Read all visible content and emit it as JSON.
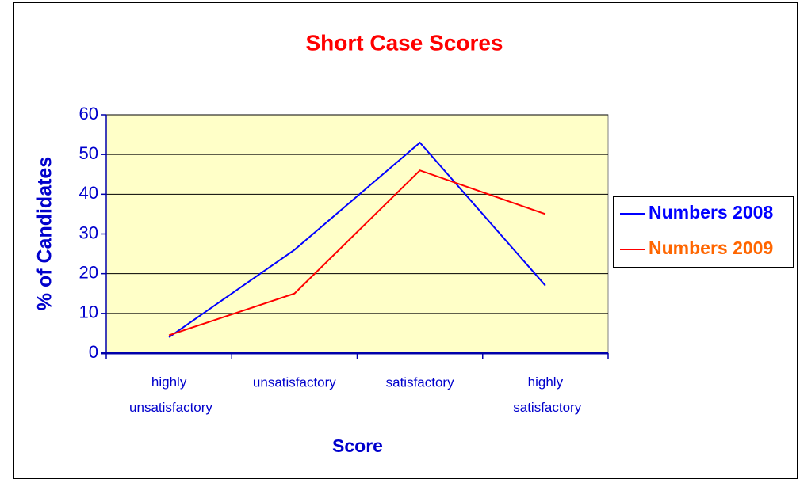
{
  "chart_data": {
    "type": "line",
    "title": "Short Case Scores",
    "categories": [
      "highly unsatisfactory",
      "unsatisfactory",
      "satisfactory",
      "highly satisfactory"
    ],
    "series": [
      {
        "name": "Numbers 2008",
        "color": "#0000ff",
        "legend_text_color": "#0000ff",
        "values": [
          4,
          26,
          53,
          17
        ]
      },
      {
        "name": "Numbers 2009",
        "color": "#ff0000",
        "legend_text_color": "#ff6600",
        "values": [
          4.5,
          15,
          46,
          35
        ]
      }
    ],
    "ylim": [
      0,
      60
    ],
    "yticks": [
      0,
      10,
      20,
      30,
      40,
      50,
      60
    ],
    "grid": true,
    "ylabel": "% of Candidates",
    "xlabel": "Score",
    "legend": "right"
  }
}
